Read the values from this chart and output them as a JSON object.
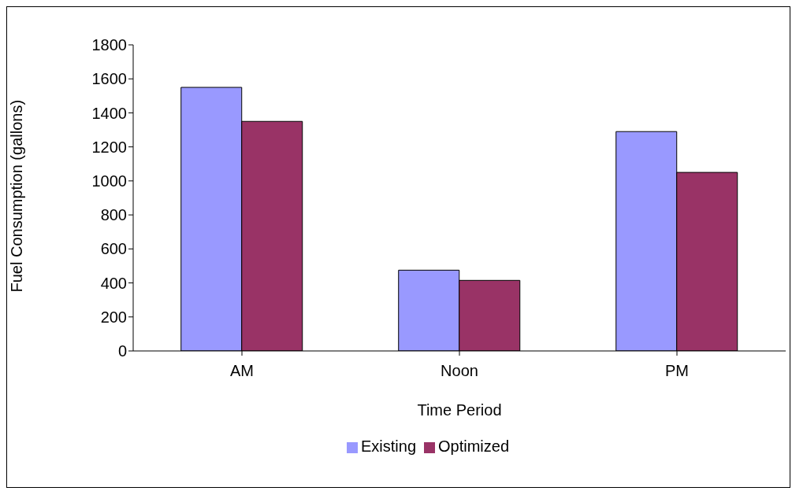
{
  "chart_data": {
    "type": "bar",
    "xlabel": "Time Period",
    "ylabel": "Fuel Consumption (gallons)",
    "categories": [
      "AM",
      "Noon",
      "PM"
    ],
    "series": [
      {
        "name": "Existing",
        "color": "#9999ff",
        "values": [
          1550,
          475,
          1290
        ]
      },
      {
        "name": "Optimized",
        "color": "#993366",
        "values": [
          1350,
          415,
          1050
        ]
      }
    ],
    "ylim": [
      0,
      1800
    ],
    "yticks": [
      0,
      200,
      400,
      600,
      800,
      1000,
      1200,
      1400,
      1600,
      1800
    ],
    "legend": "bottom"
  }
}
